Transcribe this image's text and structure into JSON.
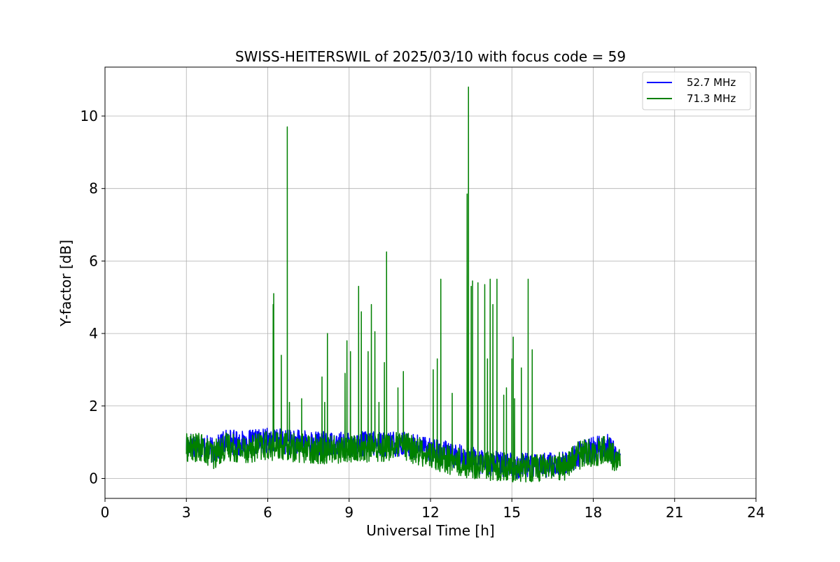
{
  "chart_data": {
    "type": "line",
    "title": "SWISS-HEITERSWIL of 2025/03/10 with focus code = 59",
    "xlabel": "Universal Time [h]",
    "ylabel": "Y-factor [dB]",
    "xlim": [
      0,
      24
    ],
    "ylim": [
      -0.55,
      11.35
    ],
    "xticks": [
      0,
      3,
      6,
      9,
      12,
      15,
      18,
      21,
      24
    ],
    "yticks": [
      0,
      2,
      4,
      6,
      8,
      10
    ],
    "grid": true,
    "legend_position": "top-right",
    "series": [
      {
        "name": "52.7 MHz",
        "color": "#0000ff",
        "baseline": [
          [
            3.0,
            0.95
          ],
          [
            3.5,
            0.95
          ],
          [
            4.0,
            0.75
          ],
          [
            4.5,
            1.05
          ],
          [
            5.0,
            0.95
          ],
          [
            6.0,
            1.05
          ],
          [
            7.0,
            1.0
          ],
          [
            8.0,
            0.95
          ],
          [
            9.0,
            0.95
          ],
          [
            10.0,
            0.95
          ],
          [
            11.0,
            0.95
          ],
          [
            12.0,
            0.8
          ],
          [
            13.0,
            0.6
          ],
          [
            14.0,
            0.45
          ],
          [
            15.0,
            0.35
          ],
          [
            16.0,
            0.35
          ],
          [
            17.0,
            0.4
          ],
          [
            17.5,
            0.7
          ],
          [
            18.5,
            0.9
          ],
          [
            19.0,
            0.55
          ]
        ],
        "noise_amplitude": 0.35,
        "peaks": []
      },
      {
        "name": "71.3 MHz",
        "color": "#008000",
        "baseline": [
          [
            3.0,
            0.85
          ],
          [
            3.5,
            0.85
          ],
          [
            4.0,
            0.65
          ],
          [
            4.5,
            0.9
          ],
          [
            5.0,
            0.8
          ],
          [
            6.0,
            0.9
          ],
          [
            7.0,
            0.85
          ],
          [
            8.0,
            0.8
          ],
          [
            9.0,
            0.8
          ],
          [
            10.0,
            0.85
          ],
          [
            11.0,
            0.9
          ],
          [
            12.0,
            0.65
          ],
          [
            13.0,
            0.45
          ],
          [
            14.0,
            0.35
          ],
          [
            15.0,
            0.3
          ],
          [
            16.0,
            0.3
          ],
          [
            17.0,
            0.35
          ],
          [
            17.5,
            0.65
          ],
          [
            18.5,
            0.8
          ],
          [
            19.0,
            0.4
          ]
        ],
        "noise_amplitude": 0.4,
        "peaks": [
          [
            6.22,
            5.1
          ],
          [
            6.2,
            4.8
          ],
          [
            6.5,
            3.4
          ],
          [
            6.72,
            9.7
          ],
          [
            6.8,
            2.1
          ],
          [
            7.25,
            2.2
          ],
          [
            8.0,
            2.8
          ],
          [
            8.1,
            2.1
          ],
          [
            8.2,
            4.0
          ],
          [
            8.85,
            2.9
          ],
          [
            8.92,
            3.8
          ],
          [
            9.05,
            3.5
          ],
          [
            9.35,
            5.3
          ],
          [
            9.45,
            4.6
          ],
          [
            9.7,
            3.5
          ],
          [
            9.82,
            4.8
          ],
          [
            9.95,
            4.05
          ],
          [
            10.1,
            2.1
          ],
          [
            10.3,
            3.2
          ],
          [
            10.38,
            6.25
          ],
          [
            10.8,
            2.5
          ],
          [
            11.0,
            2.95
          ],
          [
            12.1,
            3.0
          ],
          [
            12.25,
            3.3
          ],
          [
            12.38,
            5.5
          ],
          [
            12.8,
            2.35
          ],
          [
            13.35,
            7.85
          ],
          [
            13.4,
            10.8
          ],
          [
            13.5,
            5.3
          ],
          [
            13.55,
            5.45
          ],
          [
            13.75,
            5.4
          ],
          [
            14.0,
            5.35
          ],
          [
            14.1,
            3.3
          ],
          [
            14.2,
            5.5
          ],
          [
            14.3,
            4.8
          ],
          [
            14.45,
            5.5
          ],
          [
            14.7,
            2.3
          ],
          [
            14.8,
            2.5
          ],
          [
            15.0,
            3.3
          ],
          [
            15.05,
            3.9
          ],
          [
            15.1,
            2.2
          ],
          [
            15.35,
            3.05
          ],
          [
            15.6,
            5.5
          ],
          [
            15.75,
            3.55
          ]
        ]
      }
    ]
  }
}
